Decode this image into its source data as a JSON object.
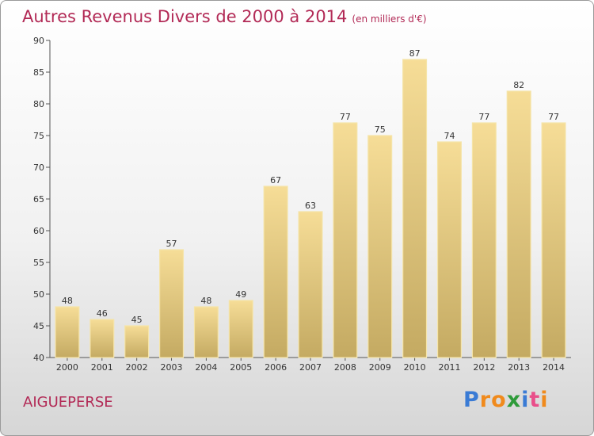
{
  "title": "Autres Revenus Divers de 2000 à 2014",
  "subtitle": "(en milliers d'€)",
  "place": "AIGUEPERSE",
  "logo": {
    "letters": [
      "P",
      "r",
      "o",
      "x",
      "i",
      "t",
      "i"
    ],
    "colors": [
      "#3a7bd5",
      "#f08a1c",
      "#f08a1c",
      "#2e9b3a",
      "#3a7bd5",
      "#e94e8a",
      "#f08a1c"
    ]
  },
  "colors": {
    "bar_top": "#f6dd97",
    "bar_bottom": "#c4aa62",
    "bar_edge": "#f5e4a8",
    "title": "#b22a56"
  },
  "chart_data": {
    "type": "bar",
    "title": "Autres Revenus Divers de 2000 à 2014",
    "xlabel": "",
    "ylabel": "",
    "categories": [
      "2000",
      "2001",
      "2002",
      "2003",
      "2004",
      "2005",
      "2006",
      "2007",
      "2008",
      "2009",
      "2010",
      "2011",
      "2012",
      "2013",
      "2014"
    ],
    "values": [
      48,
      46,
      45,
      57,
      48,
      49,
      67,
      63,
      77,
      75,
      87,
      74,
      77,
      82,
      77
    ],
    "ylim": [
      40,
      90
    ],
    "yticks": [
      40,
      45,
      50,
      55,
      60,
      65,
      70,
      75,
      80,
      85,
      90
    ],
    "grid": false,
    "legend": "none"
  }
}
